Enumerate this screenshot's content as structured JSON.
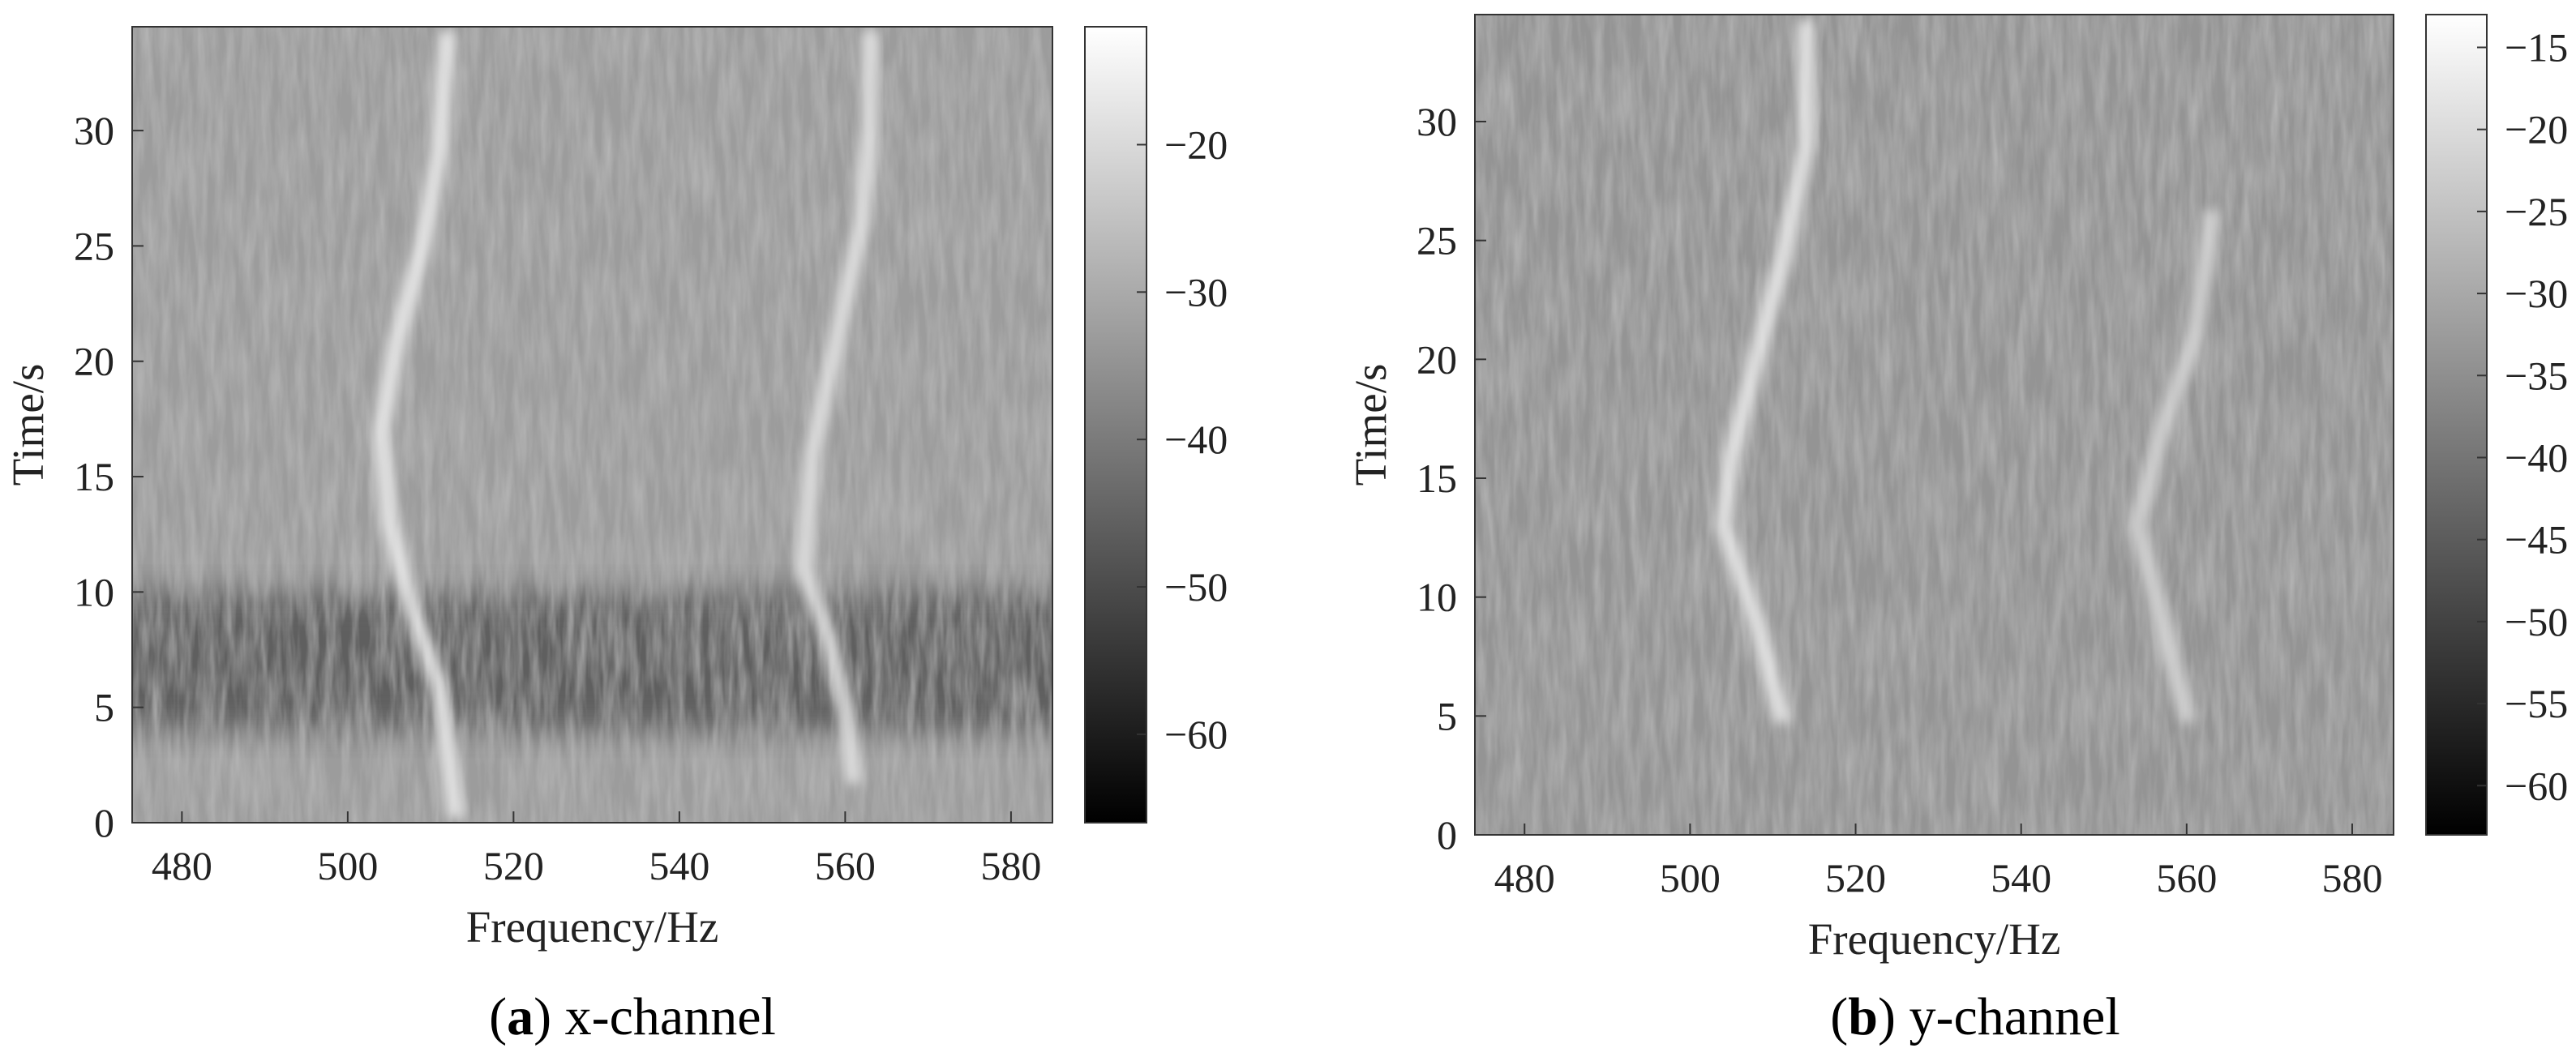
{
  "chart_data": [
    {
      "type": "heatmap",
      "panel_label": "a",
      "caption": "x-channel",
      "xlabel": "Frequency/Hz",
      "ylabel": "Time/s",
      "xlim": [
        474,
        585
      ],
      "ylim": [
        0,
        34.5
      ],
      "x_ticks": [
        "480",
        "500",
        "520",
        "540",
        "560",
        "580"
      ],
      "y_ticks": [
        "0",
        "5",
        "10",
        "15",
        "20",
        "25",
        "30"
      ],
      "colorbar": {
        "range": [
          -66,
          -12
        ],
        "ticks": [
          "−20",
          "−30",
          "−40",
          "−50",
          "−60"
        ],
        "tick_values": [
          -20,
          -30,
          -40,
          -50,
          -60
        ],
        "colormap": "gray"
      },
      "background_level": -33,
      "dark_band": {
        "t_start": 4,
        "t_end": 10,
        "level": -48
      },
      "ridges": [
        {
          "points": [
            [
              513,
              0.5
            ],
            [
              511,
              6
            ],
            [
              508,
              9
            ],
            [
              505,
              13
            ],
            [
              504,
              17
            ],
            [
              506,
              21
            ],
            [
              509,
              25
            ],
            [
              511,
              29
            ],
            [
              512,
              34
            ]
          ],
          "level": -16
        },
        {
          "points": [
            [
              561,
              2
            ],
            [
              560,
              5
            ],
            [
              558,
              8
            ],
            [
              555,
              11
            ],
            [
              556,
              16
            ],
            [
              559,
              21
            ],
            [
              562,
              26
            ],
            [
              563,
              30
            ],
            [
              563,
              34
            ]
          ],
          "level": -18
        }
      ]
    },
    {
      "type": "heatmap",
      "panel_label": "b",
      "caption": "y-channel",
      "xlabel": "Frequency/Hz",
      "ylabel": "Time/s",
      "xlim": [
        474,
        585
      ],
      "ylim": [
        0,
        34.5
      ],
      "x_ticks": [
        "480",
        "500",
        "520",
        "540",
        "560",
        "580"
      ],
      "y_ticks": [
        "0",
        "5",
        "10",
        "15",
        "20",
        "25",
        "30"
      ],
      "colorbar": {
        "range": [
          -63,
          -13
        ],
        "ticks": [
          "−15",
          "−20",
          "−25",
          "−30",
          "−35",
          "−40",
          "−45",
          "−50",
          "−55",
          "−60"
        ],
        "tick_values": [
          -15,
          -20,
          -25,
          -30,
          -35,
          -40,
          -45,
          -50,
          -55,
          -60
        ],
        "colormap": "gray"
      },
      "background_level": -34,
      "dark_band": null,
      "ridges": [
        {
          "points": [
            [
              511,
              5
            ],
            [
              508,
              9
            ],
            [
              504,
              13
            ],
            [
              505,
              16
            ],
            [
              508,
              20
            ],
            [
              511,
              24
            ],
            [
              514,
              29
            ],
            [
              514,
              34
            ]
          ],
          "level": -17
        },
        {
          "points": [
            [
              560,
              5
            ],
            [
              557,
              9
            ],
            [
              554,
              13
            ],
            [
              557,
              17
            ],
            [
              561,
              21
            ],
            [
              563,
              26
            ]
          ],
          "level": -21
        }
      ]
    }
  ]
}
